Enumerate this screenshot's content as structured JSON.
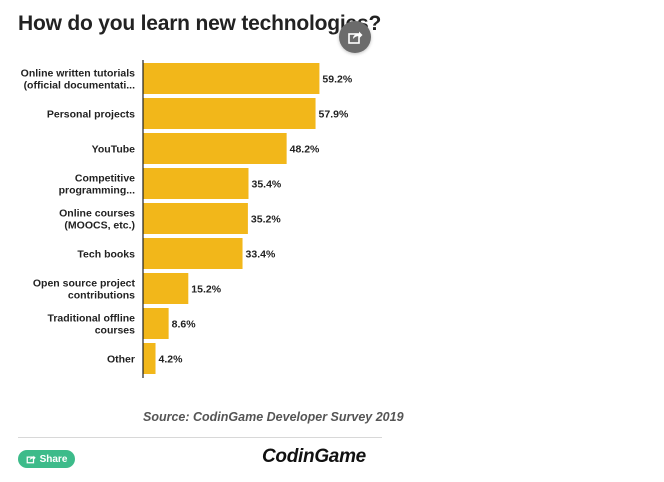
{
  "header": {
    "title": "How do you learn new technologies?"
  },
  "chart_data": {
    "type": "bar",
    "orientation": "horizontal",
    "categories": [
      [
        "Online written tutorials",
        "(official documentati..."
      ],
      [
        "Personal projects"
      ],
      [
        "YouTube"
      ],
      [
        "Competitive",
        "programming..."
      ],
      [
        "Online courses",
        "(MOOCS, etc.)"
      ],
      [
        "Tech books"
      ],
      [
        "Open source project",
        "contributions"
      ],
      [
        "Traditional offline",
        "courses"
      ],
      [
        "Other"
      ]
    ],
    "values": [
      59.2,
      57.9,
      48.2,
      35.4,
      35.2,
      33.4,
      15.2,
      8.6,
      4.2
    ],
    "value_labels": [
      "59.2%",
      "57.9%",
      "48.2%",
      "35.4%",
      "35.2%",
      "33.4%",
      "15.2%",
      "8.6%",
      "4.2%"
    ],
    "xlim": [
      0,
      100
    ],
    "bar_color": "#f2b71a",
    "grid": false,
    "legend": "none"
  },
  "footer": {
    "source": "Source: CodinGame Developer Survey 2019",
    "share_label": "Share",
    "logo_text": "CodinGame",
    "share_icon": "share-arrow-icon",
    "share_button_color": "#3dbb8a"
  }
}
